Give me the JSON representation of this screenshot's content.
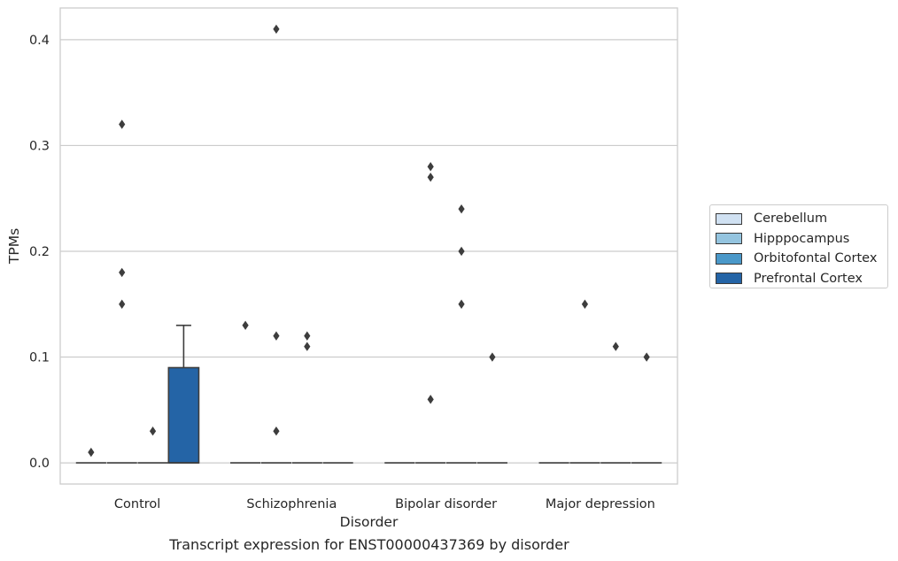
{
  "chart_data": {
    "type": "boxplot",
    "caption": "Transcript expression for ENST00000437369 by disorder",
    "xlabel": "Disorder",
    "ylabel": "TPMs",
    "ylim": [
      -0.02,
      0.43
    ],
    "yticks": [
      0.0,
      0.1,
      0.2,
      0.3,
      0.4
    ],
    "ytick_labels": [
      "0.0",
      "0.1",
      "0.2",
      "0.3",
      "0.4"
    ],
    "grid": "horizontal",
    "legend_position": "right",
    "categories": [
      "Control",
      "Schizophrenia",
      "Bipolar disorder",
      "Major depression"
    ],
    "series": [
      {
        "name": "Cerebellum",
        "color": "#d0e1f2",
        "boxes": [
          {
            "q1": 0,
            "median": 0,
            "q3": 0,
            "whisker_low": 0,
            "whisker_high": 0,
            "outliers": [
              0.01
            ]
          },
          {
            "q1": 0,
            "median": 0,
            "q3": 0,
            "whisker_low": 0,
            "whisker_high": 0,
            "outliers": [
              0.13
            ]
          },
          {
            "q1": 0,
            "median": 0,
            "q3": 0,
            "whisker_low": 0,
            "whisker_high": 0,
            "outliers": []
          },
          {
            "q1": 0,
            "median": 0,
            "q3": 0,
            "whisker_low": 0,
            "whisker_high": 0,
            "outliers": []
          }
        ]
      },
      {
        "name": "Hipppocampus",
        "color": "#94c4df",
        "boxes": [
          {
            "q1": 0,
            "median": 0,
            "q3": 0,
            "whisker_low": 0,
            "whisker_high": 0,
            "outliers": [
              0.32,
              0.18,
              0.15
            ]
          },
          {
            "q1": 0,
            "median": 0,
            "q3": 0,
            "whisker_low": 0,
            "whisker_high": 0,
            "outliers": [
              0.41,
              0.12,
              0.03
            ]
          },
          {
            "q1": 0,
            "median": 0,
            "q3": 0,
            "whisker_low": 0,
            "whisker_high": 0,
            "outliers": [
              0.28,
              0.27,
              0.06
            ]
          },
          {
            "q1": 0,
            "median": 0,
            "q3": 0,
            "whisker_low": 0,
            "whisker_high": 0,
            "outliers": [
              0.15
            ]
          }
        ]
      },
      {
        "name": "Orbitofontal Cortex",
        "color": "#4a98c9",
        "boxes": [
          {
            "q1": 0,
            "median": 0,
            "q3": 0,
            "whisker_low": 0,
            "whisker_high": 0,
            "outliers": [
              0.03
            ]
          },
          {
            "q1": 0,
            "median": 0,
            "q3": 0,
            "whisker_low": 0,
            "whisker_high": 0,
            "outliers": [
              0.12,
              0.11
            ]
          },
          {
            "q1": 0,
            "median": 0,
            "q3": 0,
            "whisker_low": 0,
            "whisker_high": 0,
            "outliers": [
              0.24,
              0.2,
              0.15
            ]
          },
          {
            "q1": 0,
            "median": 0,
            "q3": 0,
            "whisker_low": 0,
            "whisker_high": 0,
            "outliers": [
              0.11
            ]
          }
        ]
      },
      {
        "name": "Prefrontal Cortex",
        "color": "#2464a6",
        "boxes": [
          {
            "q1": 0,
            "median": 0,
            "q3": 0.09,
            "whisker_low": 0,
            "whisker_high": 0.13,
            "outliers": []
          },
          {
            "q1": 0,
            "median": 0,
            "q3": 0,
            "whisker_low": 0,
            "whisker_high": 0,
            "outliers": []
          },
          {
            "q1": 0,
            "median": 0,
            "q3": 0,
            "whisker_low": 0,
            "whisker_high": 0,
            "outliers": [
              0.1
            ]
          },
          {
            "q1": 0,
            "median": 0,
            "q3": 0,
            "whisker_low": 0,
            "whisker_high": 0,
            "outliers": [
              0.1
            ]
          }
        ]
      }
    ]
  }
}
